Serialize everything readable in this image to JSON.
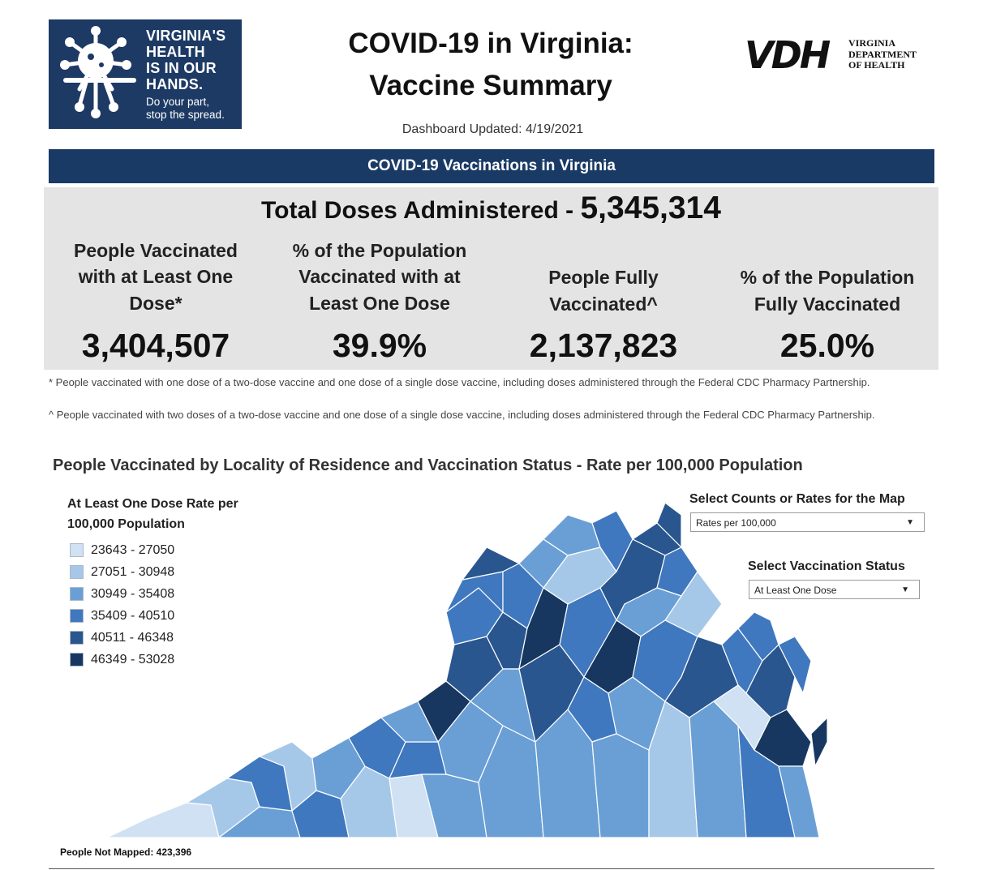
{
  "logo": {
    "lines": [
      "VIRGINIA'S",
      "HEALTH",
      "IS IN OUR",
      "HANDS."
    ],
    "sub_lines": [
      "Do your part,",
      "stop the spread."
    ]
  },
  "header": {
    "title_line1": "COVID-19 in Virginia:",
    "title_line2": "Vaccine Summary",
    "updated": "Dashboard Updated: 4/19/2021"
  },
  "vdh_logo": {
    "mark": "VDH",
    "lines": [
      "VIRGINIA",
      "DEPARTMENT",
      "OF HEALTH"
    ]
  },
  "banner": "COVID-19 Vaccinations in Virginia",
  "totals": {
    "label": "Total Doses Administered - ",
    "value": "5,345,314"
  },
  "stats": [
    {
      "label_lines": [
        "People Vaccinated",
        "with at Least One",
        "Dose*"
      ],
      "value": "3,404,507"
    },
    {
      "label_lines": [
        "% of the Population",
        "Vaccinated with at",
        "Least One Dose"
      ],
      "value": "39.9%"
    },
    {
      "label_lines": [
        "People Fully",
        "Vaccinated^"
      ],
      "value": "2,137,823"
    },
    {
      "label_lines": [
        "% of the Population",
        "Fully Vaccinated"
      ],
      "value": "25.0%"
    }
  ],
  "footnotes": [
    "* People vaccinated with one dose of a two-dose vaccine and one dose of a single dose vaccine, including doses administered through the Federal CDC Pharmacy Partnership.",
    "^ People vaccinated with two doses of a two-dose vaccine and one dose of a single dose vaccine, including doses administered through the Federal CDC Pharmacy Partnership."
  ],
  "map_section": {
    "title": "People Vaccinated by Locality of Residence and Vaccination Status - Rate per 100,000 Population",
    "legend_title_line1": "At Least One Dose Rate per",
    "legend_title_line2": "100,000 Population",
    "legend": [
      {
        "range": "23643 - 27050",
        "color": "#cfe1f2"
      },
      {
        "range": "27051 - 30948",
        "color": "#a6c8e8"
      },
      {
        "range": "30949 - 35408",
        "color": "#6a9fd6"
      },
      {
        "range": "35409 - 40510",
        "color": "#3f78bf"
      },
      {
        "range": "40511 - 46348",
        "color": "#2a568f"
      },
      {
        "range": "46349 - 53028",
        "color": "#173760"
      }
    ],
    "counts_rates_label": "Select Counts or Rates for the Map",
    "counts_rates_value": "Rates per 100,000",
    "status_label": "Select Vaccination Status",
    "status_value": "At Least One Dose",
    "not_mapped": "People Not Mapped: 423,396"
  }
}
